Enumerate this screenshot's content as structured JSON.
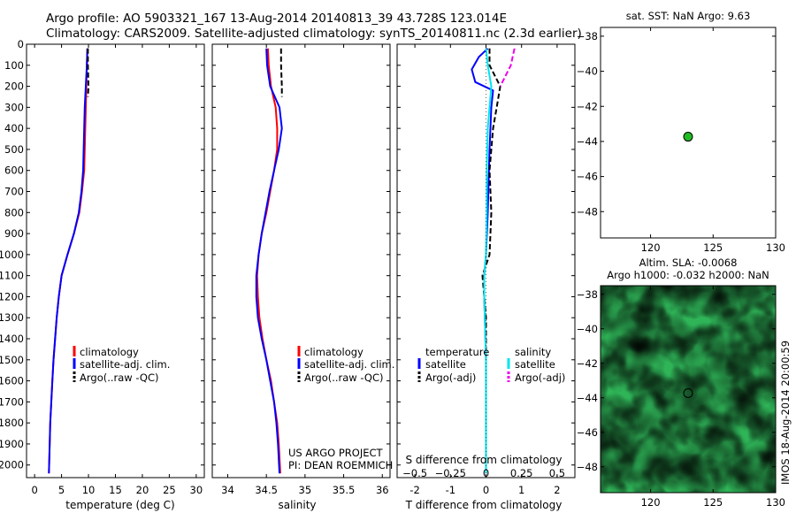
{
  "header": {
    "line1": "Argo profile: AO 5903321_167 13-Aug-2014 20140813_39 43.728S 123.014E",
    "line2": "Climatology: CARS2009. Satellite-adjusted climatology: synTS_20140811.nc (2.3d earlier)"
  },
  "colors": {
    "climatology": "#ff0000",
    "satellite": "#0000ff",
    "argo": "#000000",
    "sal_satellite": "#00e5ee",
    "sal_argo": "#ee00ee",
    "marker": "#22bb22"
  },
  "credits": {
    "line1": "US ARGO PROJECT",
    "line2": "PI: DEAN ROEMMICH"
  },
  "vertical_label": "IMOS 18-Aug-2014 20:00:59",
  "chart_data": [
    {
      "type": "line",
      "panel": "temperature",
      "xlabel": "temperature (deg C)",
      "xlim": [
        -1.5,
        31.5
      ],
      "xticks": [
        0,
        5,
        10,
        15,
        20,
        25,
        30
      ],
      "ylim": [
        0,
        2060
      ],
      "yticks": [
        0,
        100,
        200,
        300,
        400,
        500,
        600,
        700,
        800,
        900,
        1000,
        1100,
        1200,
        1300,
        1400,
        1500,
        1600,
        1700,
        1800,
        1900,
        2000
      ],
      "legend": [
        "climatology",
        "satellite-adj. clim.",
        "Argo(..raw -QC)"
      ],
      "series": [
        {
          "name": "climatology",
          "color": "#ff0000",
          "points": [
            [
              9.8,
              20
            ],
            [
              9.7,
              100
            ],
            [
              9.6,
              200
            ],
            [
              9.5,
              300
            ],
            [
              9.4,
              400
            ],
            [
              9.3,
              500
            ],
            [
              9.2,
              600
            ],
            [
              8.8,
              700
            ],
            [
              8.3,
              800
            ],
            [
              7.3,
              900
            ],
            [
              6.1,
              1000
            ],
            [
              5.0,
              1100
            ],
            [
              4.5,
              1200
            ],
            [
              4.1,
              1300
            ],
            [
              3.8,
              1400
            ],
            [
              3.5,
              1500
            ],
            [
              3.3,
              1600
            ],
            [
              3.1,
              1700
            ],
            [
              2.9,
              1800
            ],
            [
              2.8,
              1900
            ],
            [
              2.65,
              2040
            ]
          ]
        },
        {
          "name": "satellite-adj. clim.",
          "color": "#0000ff",
          "points": [
            [
              9.8,
              20
            ],
            [
              9.7,
              100
            ],
            [
              9.5,
              200
            ],
            [
              9.3,
              300
            ],
            [
              9.2,
              400
            ],
            [
              9.1,
              500
            ],
            [
              9.0,
              600
            ],
            [
              8.7,
              700
            ],
            [
              8.2,
              800
            ],
            [
              7.3,
              900
            ],
            [
              6.1,
              1000
            ],
            [
              5.0,
              1100
            ],
            [
              4.5,
              1200
            ],
            [
              4.1,
              1300
            ],
            [
              3.8,
              1400
            ],
            [
              3.5,
              1500
            ],
            [
              3.3,
              1600
            ],
            [
              3.1,
              1700
            ],
            [
              2.9,
              1800
            ],
            [
              2.8,
              1900
            ],
            [
              2.65,
              2040
            ]
          ]
        },
        {
          "name": "Argo(..raw -QC)",
          "color": "#000000",
          "dash": true,
          "points": [
            [
              9.9,
              20
            ],
            [
              9.9,
              100
            ],
            [
              10.0,
              200
            ],
            [
              9.9,
              250
            ]
          ]
        }
      ]
    },
    {
      "type": "line",
      "panel": "salinity",
      "xlabel": "salinity",
      "xlim": [
        33.8,
        36.1
      ],
      "xticks": [
        34,
        34.5,
        35,
        35.5,
        36
      ],
      "ylim": [
        0,
        2060
      ],
      "legend": [
        "climatology",
        "satellite-adj. clim.",
        "Argo(..raw -QC)"
      ],
      "series": [
        {
          "name": "climatology",
          "color": "#ff0000",
          "points": [
            [
              34.52,
              20
            ],
            [
              34.53,
              100
            ],
            [
              34.56,
              200
            ],
            [
              34.62,
              300
            ],
            [
              34.64,
              400
            ],
            [
              34.64,
              500
            ],
            [
              34.6,
              600
            ],
            [
              34.55,
              700
            ],
            [
              34.5,
              800
            ],
            [
              34.44,
              900
            ],
            [
              34.4,
              1000
            ],
            [
              34.38,
              1100
            ],
            [
              34.39,
              1200
            ],
            [
              34.41,
              1300
            ],
            [
              34.45,
              1400
            ],
            [
              34.5,
              1500
            ],
            [
              34.56,
              1600
            ],
            [
              34.6,
              1700
            ],
            [
              34.64,
              1800
            ],
            [
              34.66,
              1900
            ],
            [
              34.68,
              2040
            ]
          ]
        },
        {
          "name": "satellite-adj. clim.",
          "color": "#0000ff",
          "points": [
            [
              34.5,
              20
            ],
            [
              34.51,
              100
            ],
            [
              34.55,
              200
            ],
            [
              34.67,
              300
            ],
            [
              34.7,
              400
            ],
            [
              34.66,
              500
            ],
            [
              34.6,
              600
            ],
            [
              34.54,
              700
            ],
            [
              34.49,
              800
            ],
            [
              34.44,
              900
            ],
            [
              34.4,
              1000
            ],
            [
              34.37,
              1100
            ],
            [
              34.37,
              1200
            ],
            [
              34.39,
              1300
            ],
            [
              34.44,
              1400
            ],
            [
              34.5,
              1500
            ],
            [
              34.55,
              1600
            ],
            [
              34.6,
              1700
            ],
            [
              34.63,
              1800
            ],
            [
              34.65,
              1900
            ],
            [
              34.67,
              2040
            ]
          ]
        },
        {
          "name": "Argo(..raw -QC)",
          "color": "#000000",
          "dash": true,
          "points": [
            [
              34.69,
              20
            ],
            [
              34.69,
              100
            ],
            [
              34.7,
              200
            ],
            [
              34.7,
              250
            ]
          ]
        }
      ]
    },
    {
      "type": "line",
      "panel": "difference",
      "xlabel": "T difference from climatology",
      "xlabel_top": "S difference from climatology",
      "xlim": [
        -2.5,
        2.5
      ],
      "xticks": [
        -2,
        -1,
        0,
        1,
        2
      ],
      "xticks_top": [
        -0.5,
        -0.25,
        0,
        0.25,
        0.5
      ],
      "xtick_labels_top": [
        "−0.5",
        "−0.25",
        "0",
        "0.25",
        "0.5"
      ],
      "ylim": [
        0,
        2060
      ],
      "legend_titles": [
        "temperature",
        "salinity"
      ],
      "legend": [
        "satellite",
        "Argo(-adj)",
        "satellite",
        "Argo(-adj)"
      ],
      "series": [
        {
          "name": "satellite",
          "group": "temperature",
          "color": "#0000ff",
          "points": [
            [
              0.05,
              20
            ],
            [
              -0.2,
              60
            ],
            [
              -0.4,
              120
            ],
            [
              -0.3,
              180
            ],
            [
              0.2,
              220
            ],
            [
              0.15,
              300
            ],
            [
              0.1,
              500
            ],
            [
              0.05,
              800
            ],
            [
              0,
              1000
            ],
            [
              -0.05,
              1100
            ],
            [
              -0.05,
              1200
            ],
            [
              0,
              1500
            ],
            [
              0,
              2040
            ]
          ]
        },
        {
          "name": "Argo(-adj)",
          "group": "temperature",
          "color": "#000000",
          "dash": true,
          "points": [
            [
              0.1,
              20
            ],
            [
              0.1,
              100
            ],
            [
              0.4,
              200
            ],
            [
              0.3,
              300
            ],
            [
              0.2,
              400
            ],
            [
              0.1,
              600
            ],
            [
              0.15,
              800
            ],
            [
              0.1,
              1000
            ],
            [
              -0.1,
              1100
            ],
            [
              0,
              1300
            ],
            [
              0,
              1500
            ],
            [
              0,
              1700
            ]
          ]
        },
        {
          "name": "satellite",
          "group": "salinity",
          "color": "#00e5ee",
          "points": [
            [
              0,
              20
            ],
            [
              0.05,
              100
            ],
            [
              0.15,
              200
            ],
            [
              0.1,
              300
            ],
            [
              0.05,
              400
            ],
            [
              0.02,
              600
            ],
            [
              0.02,
              800
            ],
            [
              0,
              1000
            ],
            [
              -0.05,
              1100
            ],
            [
              -0.05,
              1200
            ],
            [
              0,
              1500
            ],
            [
              0,
              2040
            ]
          ]
        },
        {
          "name": "Argo(-adj)",
          "group": "salinity",
          "color": "#ee00ee",
          "dash": true,
          "points": [
            [
              0.8,
              20
            ],
            [
              0.7,
              100
            ],
            [
              0.4,
              200
            ]
          ]
        }
      ]
    },
    {
      "type": "scatter",
      "panel": "sst_map",
      "title": "sat. SST: NaN Argo: 9.63",
      "xlim": [
        116,
        130
      ],
      "ylim": [
        -49.5,
        -37.5
      ],
      "xticks": [
        120,
        125,
        130
      ],
      "yticks": [
        -38,
        -40,
        -42,
        -44,
        -46,
        -48
      ],
      "points": [
        {
          "x": 123.0,
          "y": -43.73
        }
      ]
    },
    {
      "type": "heatmap",
      "panel": "sla_map",
      "title_line1": "Altim. SLA: -0.0068",
      "title_line2": "Argo h1000: -0.032 h2000: NaN",
      "xlim": [
        116,
        130
      ],
      "ylim": [
        -49.5,
        -37.5
      ],
      "xticks": [
        120,
        125,
        130
      ],
      "yticks": [
        -38,
        -40,
        -42,
        -44,
        -46,
        -48
      ],
      "points": [
        {
          "x": 123.0,
          "y": -43.73
        }
      ]
    }
  ]
}
